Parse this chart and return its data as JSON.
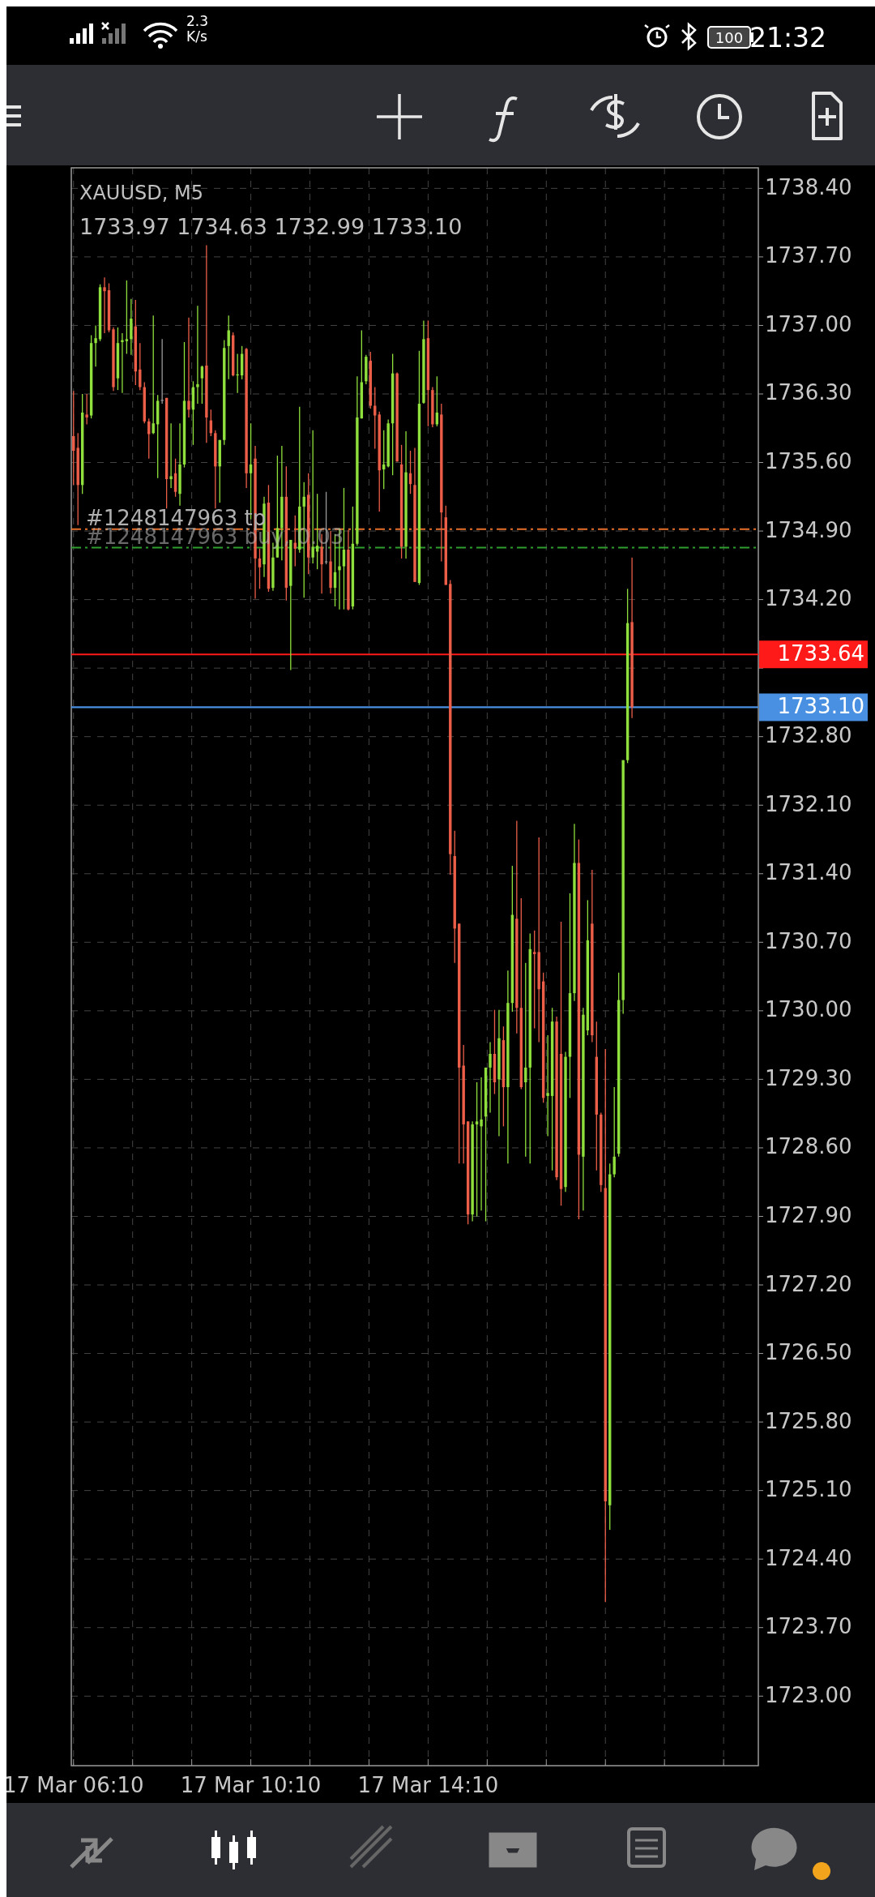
{
  "chart_data": {
    "type": "candlestick",
    "title": "XAUUSD, M5",
    "subtitle": "1733.97 1734.63 1732.99 1733.10",
    "annotations": [
      "2.3 K/s",
      "100",
      "21:32"
    ],
    "colors": [
      "#ec5e48",
      "#ec5e48",
      "#8fe03c",
      "#ec5e48",
      "#8fe03c",
      "#8fe03c",
      "#8fe03c",
      "#ec5e48",
      "#ec5e48",
      "#ec5e48",
      "#8fe03c",
      "#8fe03c",
      "#8fe03c",
      "#8fe03c",
      "#ec5e48",
      "#ec5e48",
      "#ec5e48",
      "#ec5e48",
      "#8fe03c",
      "#8fe03c",
      "#9a9a9a",
      "#ec5e48",
      "#8fe03c",
      "#ec5e48",
      "#8fe03c",
      "#8fe03c",
      "#ec5e48",
      "#8fe03c",
      "#8fe03c",
      "#8fe03c",
      "#ec5e48",
      "#ec5e48",
      "#ec5e48",
      "#8fe03c",
      "#8fe03c",
      "#8fe03c",
      "#ec5e48",
      "#8fe03c",
      "#8fe03c",
      "#ec5e48",
      "#8fe03c",
      "#ec5e48",
      "#ec5e48",
      "#8fe03c",
      "#ec5e48",
      "#8fe03c",
      "#8fe03c",
      "#8fe03c",
      "#ec5e48",
      "#8fe03c",
      "#ec5e48",
      "#8fe03c",
      "#8fe03c",
      "#ec5e48",
      "#8fe03c",
      "#8fe03c",
      "#ec5e48",
      "#9a9a9a",
      "#ec5e48",
      "#8fe03c",
      "#8fe03c",
      "#8fe03c",
      "#ec5e48",
      "#8fe03c",
      "#8fe03c",
      "#8fe03c",
      "#8fe03c",
      "#ec5e48",
      "#ec5e48",
      "#ec5e48",
      "#8fe03c",
      "#8fe03c",
      "#8fe03c",
      "#ec5e48",
      "#ec5e48",
      "#8fe03c",
      "#ec5e48",
      "#ec5e48",
      "#8fe03c",
      "#8fe03c",
      "#ec5e48",
      "#ec5e48",
      "#8fe03c",
      "#ec5e48",
      "#ec5e48",
      "#ec5e48",
      "#ec5e48",
      "#ec5e48",
      "#ec5e48",
      "#ec5e48",
      "#8fe03c",
      "#8fe03c",
      "#8fe03c",
      "#8fe03c",
      "#8fe03c",
      "#ec5e48",
      "#8fe03c",
      "#ec5e48",
      "#8fe03c",
      "#8fe03c",
      "#ec5e48",
      "#ec5e48",
      "#8fe03c",
      "#8fe03c",
      "#ec5e48",
      "#ec5e48",
      "#ec5e48",
      "#8fe03c",
      "#8fe03c",
      "#ec5e48",
      "#ec5e48",
      "#8fe03c",
      "#8fe03c",
      "#8fe03c",
      "#ec5e48",
      "#8fe03c",
      "#8fe03c",
      "#ec5e48",
      "#ec5e48",
      "#ec5e48",
      "#ec5e48",
      "#8fe03c",
      "#8fe03c",
      "#8fe03c",
      "#8fe03c",
      "#8fe03c",
      "#ec5e48",
      null,
      null,
      null,
      null,
      null,
      null,
      null,
      null,
      null,
      null,
      null,
      null,
      null,
      null,
      null,
      null,
      null,
      null,
      null,
      null,
      null,
      null,
      null,
      null,
      null,
      null,
      null,
      null
    ],
    "grid": true,
    "ylim": [
      1722.29,
      1738.61
    ],
    "yticks": [
      {
        "value": 1723.0,
        "label": "1723.00"
      },
      {
        "value": 1723.7,
        "label": "1723.70"
      },
      {
        "value": 1724.4,
        "label": "1724.40"
      },
      {
        "value": 1725.1,
        "label": "1725.10"
      },
      {
        "value": 1725.8,
        "label": "1725.80"
      },
      {
        "value": 1726.5,
        "label": "1726.50"
      },
      {
        "value": 1727.2,
        "label": "1727.20"
      },
      {
        "value": 1727.9,
        "label": "1727.90"
      },
      {
        "value": 1728.6,
        "label": "1728.60"
      },
      {
        "value": 1729.3,
        "label": "1729.30"
      },
      {
        "value": 1730.0,
        "label": "1730.00"
      },
      {
        "value": 1730.7,
        "label": "1730.70"
      },
      {
        "value": 1731.4,
        "label": "1731.40"
      },
      {
        "value": 1732.1,
        "label": "1732.10"
      },
      {
        "value": 1732.8,
        "label": "1732.80"
      },
      {
        "value": 1733.5,
        "label": null
      },
      {
        "value": 1734.2,
        "label": "1734.20"
      },
      {
        "value": 1734.9,
        "label": "1734.90"
      },
      {
        "value": 1735.6,
        "label": "1735.60"
      },
      {
        "value": 1736.3,
        "label": "1736.30"
      },
      {
        "value": 1737.0,
        "label": "1737.00"
      },
      {
        "value": 1737.7,
        "label": "1737.70"
      },
      {
        "value": 1738.4,
        "label": "1738.40"
      }
    ],
    "ref_lines": [
      {
        "axis": "y",
        "value": 1734.92,
        "label": "#1248147963 tp",
        "color": "#e8702a",
        "line_style": "dashed"
      },
      {
        "axis": "y",
        "value": 1734.73,
        "label": "#1248147963 buy, 0.03",
        "color": "#2e9e2e",
        "line_style": "dashed"
      },
      {
        "axis": "y",
        "value": 1733.64,
        "label": "1733.64",
        "color": "#ff1a1a",
        "line_style": "solid"
      },
      {
        "axis": "y",
        "value": 1733.1,
        "label": "1733.10",
        "color": "#4a90e2",
        "line_style": "solid"
      }
    ],
    "categories": [
      "17 Mar 06:10",
      null,
      null,
      null,
      null,
      null,
      null,
      null,
      null,
      null,
      null,
      null,
      null,
      null,
      null,
      null,
      null,
      null,
      null,
      null,
      null,
      null,
      null,
      null,
      null,
      null,
      null,
      null,
      null,
      null,
      null,
      null,
      null,
      null,
      null,
      null,
      null,
      null,
      null,
      null,
      "17 Mar 10:10",
      null,
      null,
      null,
      null,
      null,
      null,
      null,
      null,
      null,
      null,
      null,
      null,
      null,
      null,
      null,
      null,
      null,
      null,
      null,
      null,
      null,
      null,
      null,
      null,
      null,
      null,
      null,
      null,
      null,
      null,
      null,
      null,
      null,
      null,
      null,
      null,
      null,
      null,
      null,
      "17 Mar 14:10",
      null,
      null,
      null,
      null,
      null,
      null,
      null,
      null,
      null,
      null,
      null,
      null,
      null,
      null,
      null,
      null,
      null,
      null,
      null,
      null,
      null,
      null,
      null,
      null,
      null,
      null,
      null,
      null,
      null,
      null,
      null,
      null,
      null,
      null,
      null,
      null,
      null,
      null,
      null,
      null,
      null,
      null,
      null,
      null,
      null,
      null,
      null,
      null,
      null,
      null,
      null,
      null,
      null,
      null,
      null,
      null,
      null,
      null,
      null,
      null,
      null,
      null,
      null,
      null,
      null,
      null,
      null,
      null,
      null,
      null,
      null,
      null,
      null,
      null
    ],
    "ohlc": [
      [
        1735.87,
        1736.33,
        1735.37,
        1735.72
      ],
      [
        1735.75,
        1735.9,
        1734.96,
        1735.37
      ],
      [
        1735.37,
        1736.3,
        1735.28,
        1736.11
      ],
      [
        1736.09,
        1736.3,
        1735.99,
        1736.06
      ],
      [
        1736.08,
        1736.9,
        1736.05,
        1736.82
      ],
      [
        1736.82,
        1737.0,
        1736.58,
        1736.87
      ],
      [
        1736.86,
        1737.42,
        1736.84,
        1737.39
      ],
      [
        1737.39,
        1737.49,
        1736.92,
        1737.35
      ],
      [
        1737.36,
        1737.43,
        1736.93,
        1736.95
      ],
      [
        1736.96,
        1736.98,
        1736.33,
        1736.37
      ],
      [
        1736.46,
        1736.98,
        1736.34,
        1736.82
      ],
      [
        1736.83,
        1736.92,
        1736.31,
        1736.85
      ],
      [
        1736.84,
        1737.46,
        1736.71,
        1736.86
      ],
      [
        1736.86,
        1737.27,
        1736.7,
        1737.07
      ],
      [
        1736.99,
        1737.26,
        1736.39,
        1736.53
      ],
      [
        1736.55,
        1736.82,
        1736.34,
        1736.37
      ],
      [
        1736.37,
        1736.42,
        1736.0,
        1736.02
      ],
      [
        1736.02,
        1736.05,
        1735.64,
        1735.89
      ],
      [
        1735.9,
        1737.1,
        1735.89,
        1736.0
      ],
      [
        1735.99,
        1736.29,
        1735.44,
        1736.23
      ],
      [
        1736.24,
        1736.86,
        1736.2,
        1736.24
      ],
      [
        1736.26,
        1736.26,
        1735.13,
        1735.43
      ],
      [
        1735.43,
        1736.0,
        1735.34,
        1735.46
      ],
      [
        1735.49,
        1735.64,
        1735.25,
        1735.3
      ],
      [
        1735.28,
        1736.0,
        1735.16,
        1735.58
      ],
      [
        1735.58,
        1736.83,
        1735.55,
        1736.23
      ],
      [
        1736.23,
        1737.08,
        1736.06,
        1736.14
      ],
      [
        1736.14,
        1736.43,
        1735.78,
        1736.37
      ],
      [
        1736.37,
        1737.2,
        1736.2,
        1736.4
      ],
      [
        1736.46,
        1736.59,
        1736.2,
        1736.58
      ],
      [
        1736.59,
        1737.82,
        1735.8,
        1736.06
      ],
      [
        1736.03,
        1736.14,
        1735.87,
        1735.9
      ],
      [
        1735.9,
        1735.93,
        1735.13,
        1735.56
      ],
      [
        1735.56,
        1735.83,
        1735.19,
        1735.83
      ],
      [
        1735.83,
        1736.85,
        1735.78,
        1736.77
      ],
      [
        1736.79,
        1737.1,
        1736.45,
        1736.95
      ],
      [
        1736.9,
        1736.93,
        1736.48,
        1736.49
      ],
      [
        1736.49,
        1736.71,
        1736.31,
        1736.5
      ],
      [
        1736.49,
        1736.79,
        1736.45,
        1736.71
      ],
      [
        1736.76,
        1736.77,
        1735.34,
        1735.49
      ],
      [
        1735.49,
        1736.0,
        1735.02,
        1735.58
      ],
      [
        1735.64,
        1735.77,
        1734.21,
        1734.62
      ],
      [
        1734.62,
        1734.72,
        1734.31,
        1734.53
      ],
      [
        1734.56,
        1735.25,
        1734.43,
        1735.18
      ],
      [
        1735.19,
        1735.37,
        1734.28,
        1734.31
      ],
      [
        1734.32,
        1734.78,
        1734.29,
        1734.63
      ],
      [
        1734.63,
        1735.67,
        1734.63,
        1734.93
      ],
      [
        1734.93,
        1735.77,
        1734.6,
        1735.25
      ],
      [
        1735.25,
        1735.56,
        1734.19,
        1734.32
      ],
      [
        1734.34,
        1734.81,
        1733.48,
        1734.81
      ],
      [
        1734.78,
        1735.06,
        1734.54,
        1734.72
      ],
      [
        1734.71,
        1736.17,
        1734.68,
        1735.15
      ],
      [
        1735.15,
        1735.4,
        1734.22,
        1735.25
      ],
      [
        1735.27,
        1735.49,
        1734.46,
        1734.63
      ],
      [
        1734.63,
        1735.93,
        1734.57,
        1734.74
      ],
      [
        1734.69,
        1735.28,
        1734.51,
        1734.75
      ],
      [
        1734.74,
        1734.87,
        1734.26,
        1734.56
      ],
      [
        1734.59,
        1735.3,
        1734.56,
        1734.59
      ],
      [
        1734.59,
        1734.9,
        1734.26,
        1734.32
      ],
      [
        1734.32,
        1734.87,
        1734.13,
        1734.48
      ],
      [
        1734.5,
        1734.93,
        1734.1,
        1734.54
      ],
      [
        1734.54,
        1735.34,
        1734.1,
        1734.71
      ],
      [
        1734.71,
        1734.91,
        1734.09,
        1734.1
      ],
      [
        1734.13,
        1735.15,
        1734.1,
        1734.77
      ],
      [
        1734.77,
        1736.48,
        1734.75,
        1736.06
      ],
      [
        1736.05,
        1736.95,
        1736.05,
        1736.42
      ],
      [
        1736.43,
        1736.7,
        1736.4,
        1736.68
      ],
      [
        1736.64,
        1736.73,
        1736.15,
        1736.18
      ],
      [
        1736.18,
        1736.37,
        1735.74,
        1736.08
      ],
      [
        1736.09,
        1736.12,
        1735.1,
        1735.52
      ],
      [
        1735.53,
        1735.93,
        1735.33,
        1735.58
      ],
      [
        1735.56,
        1736.04,
        1735.55,
        1736.0
      ],
      [
        1736.0,
        1736.71,
        1735.47,
        1736.51
      ],
      [
        1736.51,
        1736.52,
        1735.61,
        1735.61
      ],
      [
        1735.58,
        1735.78,
        1734.62,
        1734.74
      ],
      [
        1734.74,
        1735.92,
        1734.62,
        1735.5
      ],
      [
        1735.49,
        1735.72,
        1735.28,
        1735.38
      ],
      [
        1735.37,
        1735.75,
        1734.38,
        1734.38
      ],
      [
        1734.37,
        1736.74,
        1734.35,
        1736.2
      ],
      [
        1736.21,
        1737.05,
        1736.2,
        1736.86
      ],
      [
        1736.87,
        1737.05,
        1735.97,
        1736.34
      ],
      [
        1736.34,
        1736.37,
        1735.96,
        1735.99
      ],
      [
        1735.99,
        1736.48,
        1735.97,
        1736.11
      ],
      [
        1736.09,
        1736.2,
        1734.59,
        1735.09
      ],
      [
        1735.04,
        1735.16,
        1734.35,
        1734.35
      ],
      [
        1734.36,
        1734.4,
        1731.39,
        1731.6
      ],
      [
        1731.58,
        1731.84,
        1730.49,
        1730.84
      ],
      [
        1730.89,
        1730.89,
        1728.44,
        1729.42
      ],
      [
        1729.44,
        1729.65,
        1728.44,
        1728.84
      ],
      [
        1728.87,
        1728.87,
        1727.82,
        1727.92
      ],
      [
        1727.92,
        1728.87,
        1727.85,
        1728.84
      ],
      [
        1728.84,
        1729.27,
        1727.9,
        1728.87
      ],
      [
        1728.82,
        1729.32,
        1727.96,
        1728.89
      ],
      [
        1728.92,
        1729.42,
        1727.85,
        1729.42
      ],
      [
        1729.42,
        1729.68,
        1728.96,
        1729.56
      ],
      [
        1729.56,
        1730.01,
        1729.15,
        1729.27
      ],
      [
        1729.3,
        1730.01,
        1728.72,
        1729.72
      ],
      [
        1729.7,
        1729.84,
        1728.82,
        1729.22
      ],
      [
        1729.22,
        1730.41,
        1728.44,
        1730.08
      ],
      [
        1730.08,
        1731.48,
        1729.99,
        1730.98
      ],
      [
        1730.94,
        1731.94,
        1729.77,
        1730.03
      ],
      [
        1730.03,
        1731.15,
        1729.2,
        1729.22
      ],
      [
        1729.27,
        1730.49,
        1728.51,
        1729.42
      ],
      [
        1729.42,
        1730.79,
        1728.44,
        1730.63
      ],
      [
        1730.6,
        1730.82,
        1729.82,
        1730.58
      ],
      [
        1730.6,
        1731.77,
        1729.68,
        1730.22
      ],
      [
        1730.3,
        1730.39,
        1729.06,
        1729.11
      ],
      [
        1729.13,
        1729.75,
        1728.72,
        1729.16
      ],
      [
        1729.13,
        1730.03,
        1728.37,
        1729.89
      ],
      [
        1729.89,
        1729.94,
        1728.27,
        1728.3
      ],
      [
        1729.56,
        1730.91,
        1728.01,
        1728.18
      ],
      [
        1728.2,
        1729.58,
        1728.15,
        1729.53
      ],
      [
        1729.53,
        1731.2,
        1729.11,
        1730.18
      ],
      [
        1730.18,
        1731.91,
        1730.1,
        1731.51
      ],
      [
        1731.51,
        1731.75,
        1727.87,
        1728.53
      ],
      [
        1728.51,
        1730.03,
        1727.96,
        1729.96
      ],
      [
        1729.8,
        1731.13,
        1729.75,
        1730.72
      ],
      [
        1730.89,
        1731.44,
        1729.68,
        1729.75
      ],
      [
        1729.53,
        1729.89,
        1728.37,
        1728.94
      ],
      [
        1728.94,
        1728.96,
        1728.15,
        1728.22
      ],
      [
        1728.19,
        1729.61,
        1723.96,
        1724.99
      ],
      [
        1724.95,
        1728.44,
        1724.7,
        1728.33
      ],
      [
        1728.33,
        1729.22,
        1728.3,
        1728.51
      ],
      [
        1728.54,
        1730.39,
        1728.51,
        1730.11
      ],
      [
        1730.11,
        1732.56,
        1729.97,
        1732.56
      ],
      [
        1732.56,
        1734.31,
        1732.53,
        1733.96
      ],
      [
        1733.97,
        1734.63,
        1732.99,
        1733.1
      ],
      null,
      null,
      null,
      null,
      null,
      null,
      null,
      null,
      null,
      null,
      null,
      null,
      null,
      null,
      null,
      null,
      null,
      null,
      null,
      null,
      null,
      null,
      null,
      null,
      null,
      null,
      null,
      null
    ]
  }
}
